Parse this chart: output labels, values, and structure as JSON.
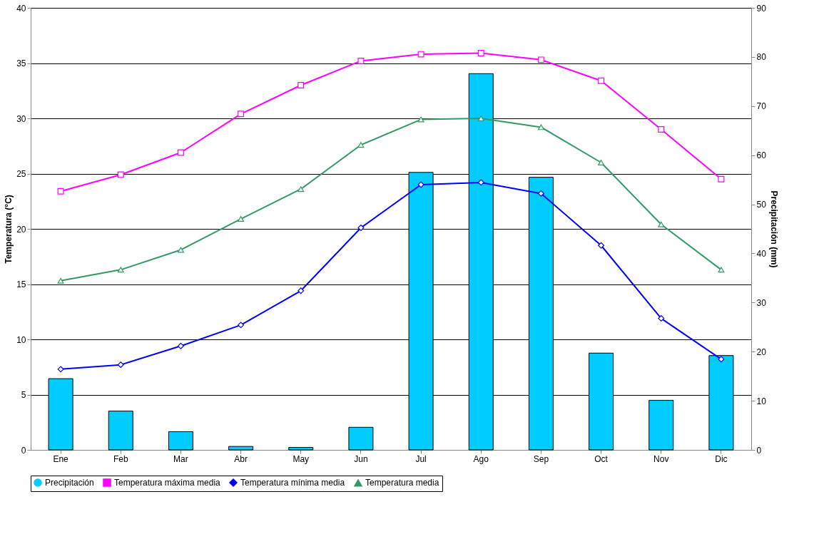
{
  "chart_data": {
    "type": "bar",
    "ylabel": "Temperatura (°C)",
    "y2label": "Precipitación (mm)",
    "categories": [
      "Ene",
      "Feb",
      "Mar",
      "Abr",
      "May",
      "Jun",
      "Jul",
      "Ago",
      "Sep",
      "Oct",
      "Nov",
      "Dic"
    ],
    "ylim": [
      0,
      40
    ],
    "yticks": [
      0,
      5,
      10,
      15,
      20,
      25,
      30,
      35,
      40
    ],
    "y2lim": [
      0,
      90
    ],
    "y2ticks": [
      0,
      10,
      20,
      30,
      40,
      50,
      60,
      70,
      80,
      90
    ],
    "grid": "y",
    "legend": "bottom",
    "series": [
      {
        "name": "Precipitación",
        "axis": "y2",
        "color": "#00ccff",
        "values": [
          14.5,
          7.9,
          3.7,
          0.7,
          0.5,
          4.6,
          56.5,
          76.6,
          55.5,
          19.7,
          10.1,
          19.2
        ]
      },
      {
        "name": "Temperatura máxima media",
        "type": "line",
        "marker": "square",
        "color": "#ff00ff",
        "values": [
          23.4,
          24.9,
          26.9,
          30.4,
          33.0,
          35.2,
          35.8,
          35.9,
          35.3,
          33.4,
          29.0,
          24.5
        ]
      },
      {
        "name": "Temperatura mínima media",
        "type": "line",
        "marker": "diamond",
        "color": "#0000ff",
        "values": [
          7.3,
          7.7,
          9.4,
          11.3,
          14.4,
          20.1,
          24.0,
          24.2,
          23.2,
          18.5,
          11.9,
          8.2
        ]
      },
      {
        "name": "Temperatura media",
        "type": "line",
        "marker": "triangle",
        "color": "#339966",
        "values": [
          15.3,
          16.3,
          18.1,
          20.9,
          23.6,
          27.6,
          29.9,
          30.0,
          29.2,
          26.0,
          20.4,
          16.3
        ]
      }
    ]
  }
}
